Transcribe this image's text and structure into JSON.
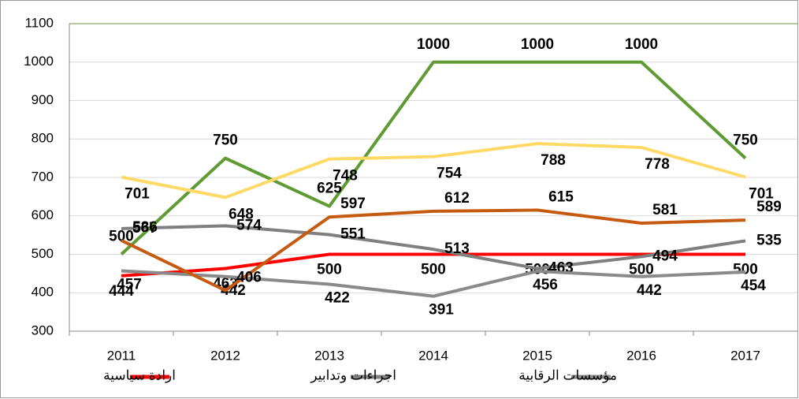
{
  "chart_data": {
    "type": "line",
    "categories": [
      "2011",
      "2012",
      "2013",
      "2014",
      "2015",
      "2016",
      "2017"
    ],
    "series": [
      {
        "name": "ارادة سياسية",
        "color": "#ff0000",
        "values": [
          444,
          463,
          500,
          500,
          500,
          500,
          500
        ]
      },
      {
        "name": "اجراءات وتدابير",
        "color": "#7f7f7f",
        "values": [
          567,
          574,
          551,
          513,
          463,
          494,
          535
        ]
      },
      {
        "name": "مؤسسات الرقابية",
        "color": "#8a8a8a",
        "values": [
          457,
          442,
          422,
          391,
          456,
          442,
          454
        ]
      },
      {
        "color": "#5e9b32",
        "values": [
          500,
          750,
          625,
          1000,
          1000,
          1000,
          750
        ]
      },
      {
        "color": "#ffd966",
        "values": [
          701,
          648,
          748,
          754,
          788,
          778,
          701
        ]
      },
      {
        "color": "#c55a11",
        "values": [
          536,
          406,
          597,
          612,
          615,
          581,
          589
        ]
      }
    ],
    "ylim": [
      300,
      1100
    ],
    "yticks": [
      300,
      400,
      500,
      600,
      700,
      800,
      900,
      1000,
      1100
    ],
    "grid": true
  }
}
